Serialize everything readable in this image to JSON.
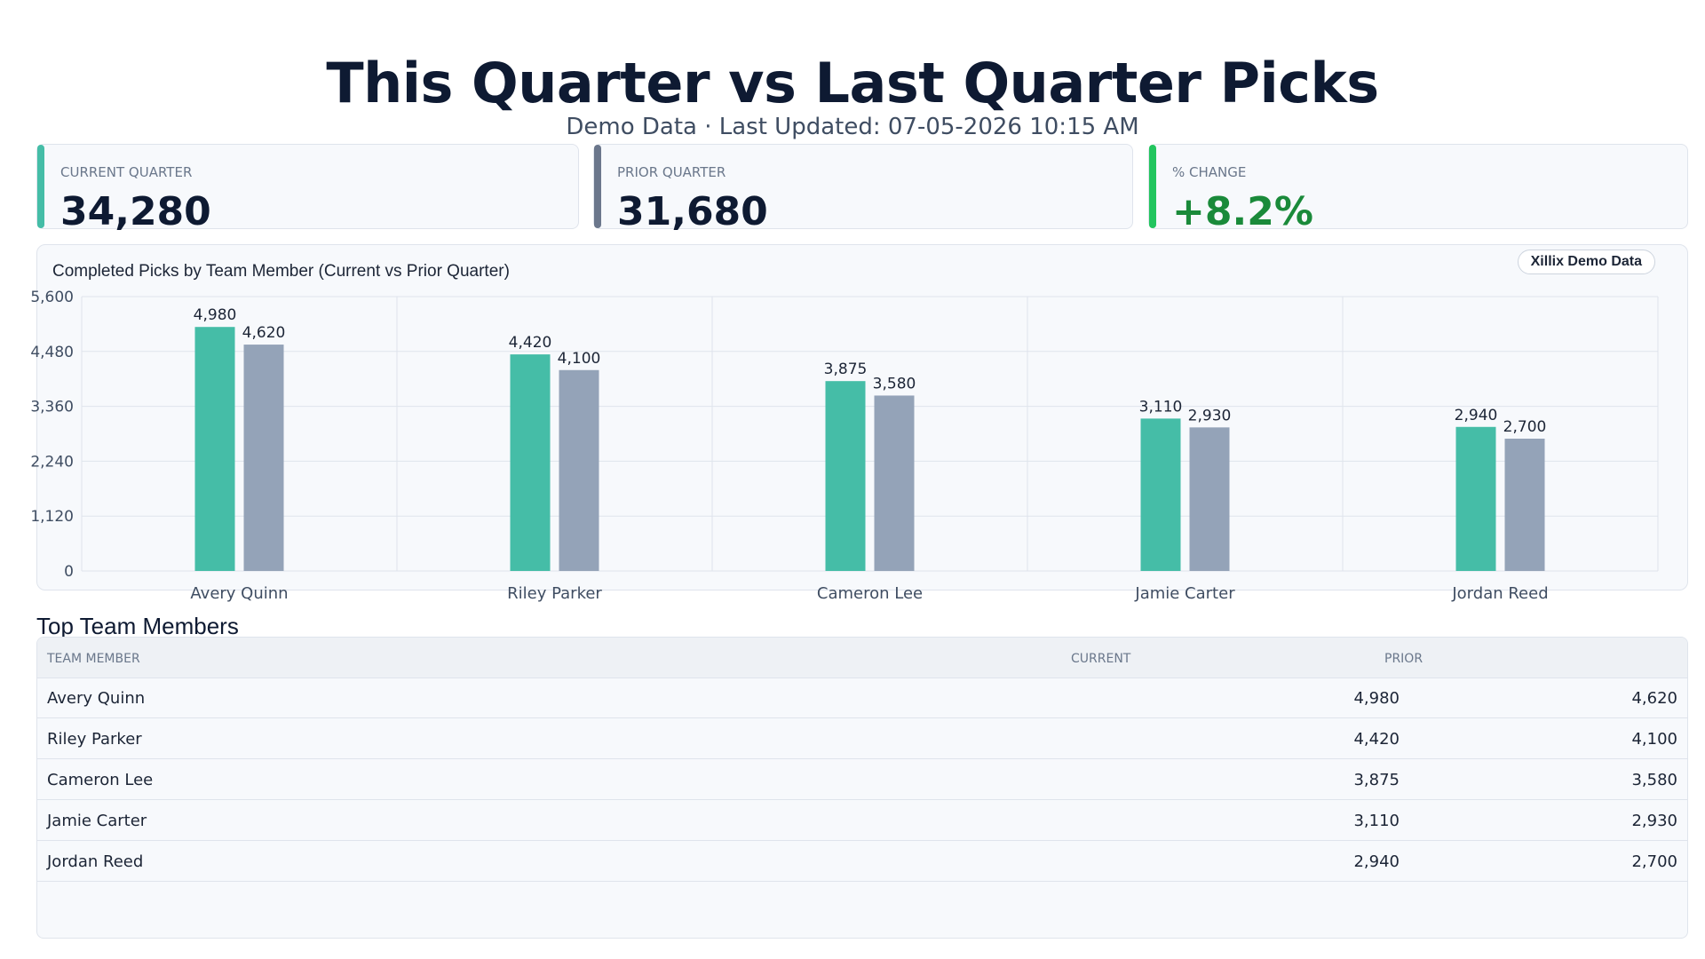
{
  "header": {
    "title": "This Quarter vs Last Quarter Picks",
    "subtitle": "Demo Data · Last Updated: 07-05-2026 10:15 AM"
  },
  "kpis": [
    {
      "label": "CURRENT QUARTER",
      "value": "34,280",
      "accent": "#45bda7",
      "value_color": "#0e1a32"
    },
    {
      "label": "PRIOR QUARTER",
      "value": "31,680",
      "accent": "#6b778c",
      "value_color": "#0e1a32"
    },
    {
      "label": "% CHANGE",
      "value": "+8.2%",
      "accent": "#22c55e",
      "value_color": "#1a8a3a"
    }
  ],
  "chart_card": {
    "title": "Completed Picks by Team Member (Current vs Prior Quarter)",
    "badge": "Xillix Demo Data"
  },
  "chart_data": {
    "type": "bar",
    "categories": [
      "Avery Quinn",
      "Riley Parker",
      "Cameron Lee",
      "Jamie Carter",
      "Jordan Reed"
    ],
    "series": [
      {
        "values": [
          4980,
          4420,
          3875,
          3110,
          2940
        ],
        "color": "#45bda7"
      },
      {
        "values": [
          4620,
          4100,
          3580,
          2930,
          2700
        ],
        "color": "#94a3b8"
      }
    ],
    "data_labels": [
      [
        "4,980",
        "4,420",
        "3,875",
        "3,110",
        "2,940"
      ],
      [
        "4,620",
        "4,100",
        "3,580",
        "2,930",
        "2,700"
      ]
    ],
    "ylim": [
      0,
      5600
    ],
    "yticks": [
      0,
      1120,
      2240,
      3360,
      4480,
      5600
    ],
    "ytick_labels": [
      "0",
      "1,120",
      "2,240",
      "3,360",
      "4,480",
      "5,600"
    ],
    "grid": true,
    "title": "Completed Picks by Team Member (Current vs Prior Quarter)",
    "xlabel": "",
    "ylabel": ""
  },
  "table": {
    "section_title": "Top Team Members",
    "columns": [
      "TEAM MEMBER",
      "CURRENT",
      "PRIOR"
    ],
    "rows": [
      {
        "name": "Avery Quinn",
        "current": "4,980",
        "prior": "4,620"
      },
      {
        "name": "Riley Parker",
        "current": "4,420",
        "prior": "4,100"
      },
      {
        "name": "Cameron Lee",
        "current": "3,875",
        "prior": "3,580"
      },
      {
        "name": "Jamie Carter",
        "current": "3,110",
        "prior": "2,930"
      },
      {
        "name": "Jordan Reed",
        "current": "2,940",
        "prior": "2,700"
      }
    ]
  }
}
